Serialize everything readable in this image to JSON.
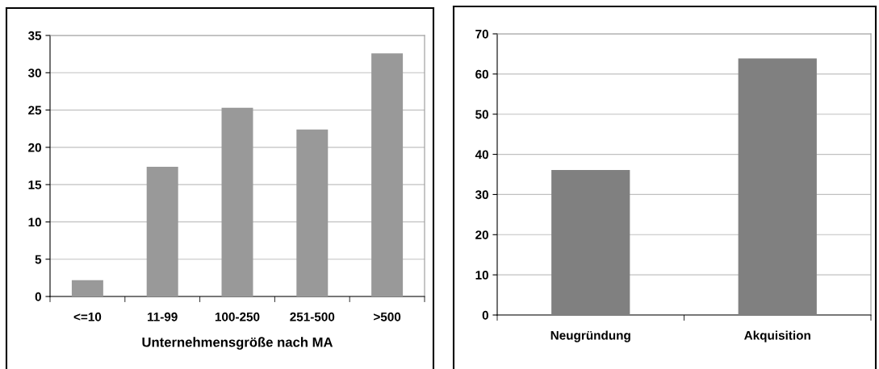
{
  "chart_data": [
    {
      "type": "bar",
      "categories": [
        "<=10",
        "11-99",
        "100-250",
        "251-500",
        ">500"
      ],
      "values": [
        2.2,
        17.4,
        25.3,
        22.4,
        32.6
      ],
      "color": "#999999",
      "xlabel": "Unternehmensgröße nach MA",
      "ylim": [
        0,
        35
      ],
      "yticks": [
        0,
        5,
        10,
        15,
        20,
        25,
        30,
        35
      ],
      "grid": "y"
    },
    {
      "type": "bar",
      "categories": [
        "Neugründung",
        "Akquisition"
      ],
      "values": [
        36.1,
        63.9
      ],
      "color": "#808080",
      "ylim": [
        0,
        70
      ],
      "yticks": [
        0,
        10,
        20,
        30,
        40,
        50,
        60,
        70
      ],
      "grid": "y"
    }
  ]
}
